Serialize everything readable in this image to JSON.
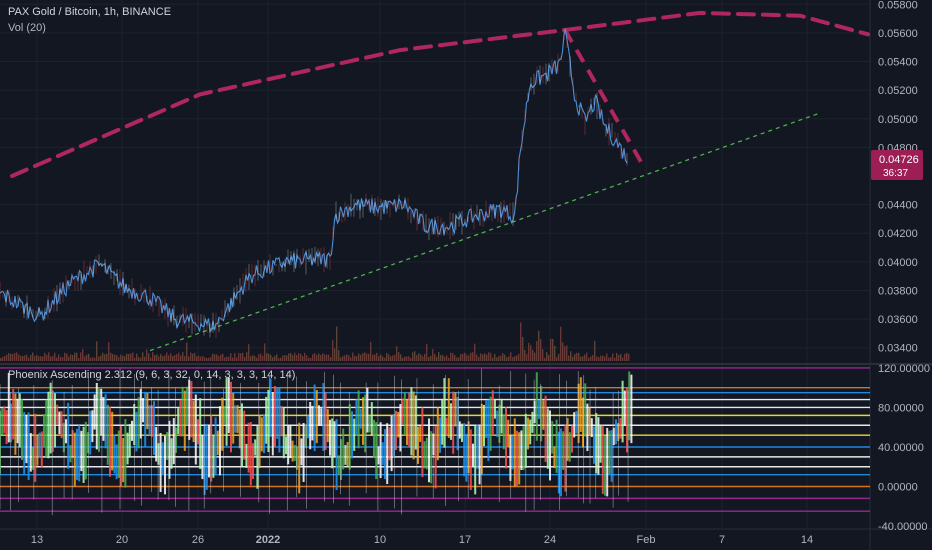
{
  "chart_data": [
    {
      "type": "line",
      "title": "PAX Gold / Bitcoin, 1h, BINANCE",
      "subtitle": "Vol (20)",
      "x_tick_labels": [
        "13",
        "20",
        "26",
        "2022",
        "10",
        "17",
        "24",
        "Feb",
        "7",
        "14"
      ],
      "y_tick_labels": [
        "0.05800",
        "0.05600",
        "0.05400",
        "0.05200",
        "0.05000",
        "0.04800",
        "0.04400",
        "0.04200",
        "0.04000",
        "0.03800",
        "0.03600",
        "0.03400"
      ],
      "ylim": [
        0.033,
        0.0583
      ],
      "last_price": {
        "value": "0.04726",
        "countdown": "36:37"
      },
      "price_path": [
        [
          0,
          0.0378
        ],
        [
          40,
          0.0362
        ],
        [
          70,
          0.0385
        ],
        [
          100,
          0.0398
        ],
        [
          125,
          0.0382
        ],
        [
          150,
          0.0375
        ],
        [
          175,
          0.036
        ],
        [
          215,
          0.0355
        ],
        [
          250,
          0.039
        ],
        [
          285,
          0.04
        ],
        [
          330,
          0.0402
        ],
        [
          335,
          0.0432
        ],
        [
          355,
          0.044
        ],
        [
          380,
          0.0438
        ],
        [
          405,
          0.044
        ],
        [
          425,
          0.0425
        ],
        [
          450,
          0.0425
        ],
        [
          475,
          0.0432
        ],
        [
          500,
          0.0437
        ],
        [
          515,
          0.0432
        ],
        [
          520,
          0.0476
        ],
        [
          530,
          0.0525
        ],
        [
          545,
          0.053
        ],
        [
          560,
          0.0538
        ],
        [
          565,
          0.056
        ],
        [
          575,
          0.0515
        ],
        [
          585,
          0.0498
        ],
        [
          595,
          0.0512
        ],
        [
          605,
          0.0495
        ],
        [
          615,
          0.0485
        ],
        [
          628,
          0.0472
        ]
      ],
      "drawings": {
        "arc": [
          [
            12,
            0.046
          ],
          [
            200,
            0.0517
          ],
          [
            400,
            0.0548
          ],
          [
            565,
            0.0562
          ],
          [
            700,
            0.0574
          ],
          [
            800,
            0.0572
          ],
          [
            868,
            0.0559
          ]
        ],
        "trendline": [
          [
            150,
            0.0338
          ],
          [
            820,
            0.0504
          ]
        ],
        "decline_line": [
          [
            565,
            0.0562
          ],
          [
            645,
            0.0465
          ]
        ]
      },
      "series_colors": {
        "price": "#4a90d9",
        "arc": "#b0265f",
        "trend": "#4caf50",
        "label": "#9c1e55"
      }
    },
    {
      "type": "line",
      "title": "Phoenix Ascending 2.312 (9, 6, 3, 32, 0, 14, 3, 3, 3, 14, 14)",
      "y_tick_labels": [
        "120.00000",
        "80.00000",
        "40.00000",
        "0.00000",
        "-40.00000"
      ],
      "ylim": [
        -42,
        123
      ],
      "reference_levels": [
        {
          "value": 120,
          "color": "#a52a9a"
        },
        {
          "value": 100,
          "color": "#e67e22"
        },
        {
          "value": 95,
          "color": "#2196f3"
        },
        {
          "value": 88,
          "color": "#ffffff"
        },
        {
          "value": 80,
          "color": "#ffffff"
        },
        {
          "value": 72,
          "color": "#ffeb3b"
        },
        {
          "value": 62,
          "color": "#ffffff"
        },
        {
          "value": 52,
          "color": "#ffeb3b"
        },
        {
          "value": 40,
          "color": "#2196f3"
        },
        {
          "value": 30,
          "color": "#ffffff"
        },
        {
          "value": 20,
          "color": "#ffffff"
        },
        {
          "value": 12,
          "color": "#2196f3"
        },
        {
          "value": 0,
          "color": "#e67e22"
        },
        {
          "value": -12,
          "color": "#a52a9a"
        },
        {
          "value": -25,
          "color": "#a52a9a"
        }
      ],
      "oscillator_colors": [
        "#2196f3",
        "#4caf50",
        "#f5a623",
        "#ffffff",
        "#ff5252",
        "#b0ffb0"
      ]
    }
  ]
}
